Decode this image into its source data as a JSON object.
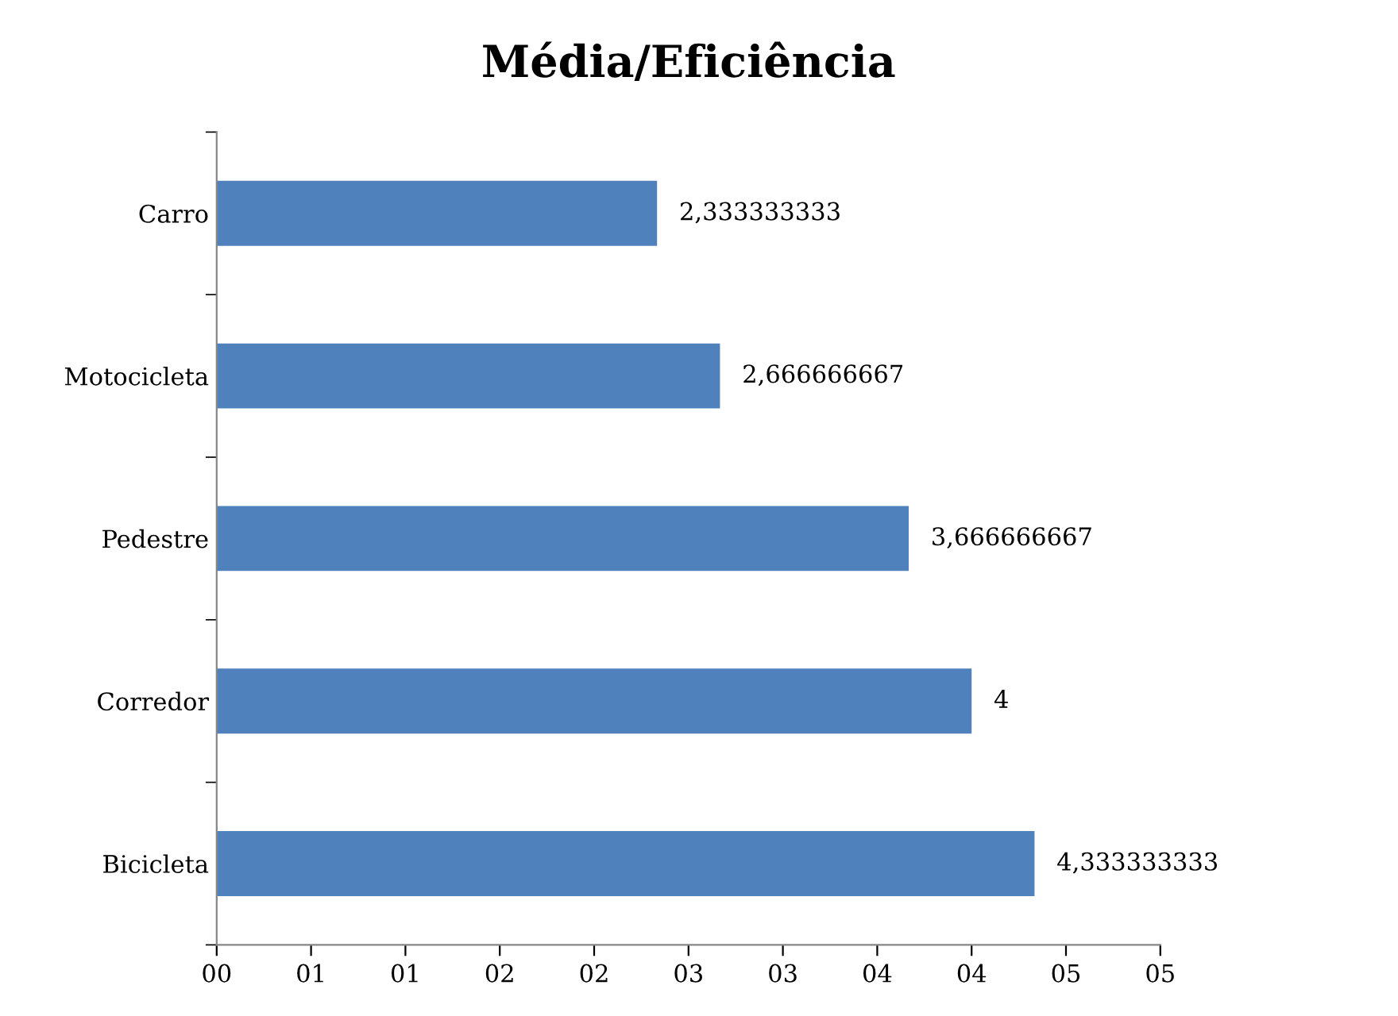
{
  "chart_data": {
    "type": "bar",
    "orientation": "horizontal",
    "title": "Média/Eficiência",
    "categories": [
      "Carro",
      "Motocicleta",
      "Pedestre",
      "Corredor",
      "Bicicleta"
    ],
    "values": [
      2.333333333,
      2.666666667,
      3.666666667,
      4,
      4.333333333
    ],
    "value_labels": [
      "2,333333333",
      "2,666666667",
      "3,666666667",
      "4",
      "4,333333333"
    ],
    "color": "#4f81bd",
    "xlim": [
      0,
      5
    ],
    "xticks": [
      {
        "value": 0,
        "label": "00"
      },
      {
        "value": 0.5,
        "label": "01"
      },
      {
        "value": 1,
        "label": "01"
      },
      {
        "value": 1.5,
        "label": "02"
      },
      {
        "value": 2,
        "label": "02"
      },
      {
        "value": 2.5,
        "label": "03"
      },
      {
        "value": 3,
        "label": "03"
      },
      {
        "value": 3.5,
        "label": "04"
      },
      {
        "value": 4,
        "label": "04"
      },
      {
        "value": 4.5,
        "label": "05"
      },
      {
        "value": 5,
        "label": "05"
      }
    ],
    "grid": false
  }
}
